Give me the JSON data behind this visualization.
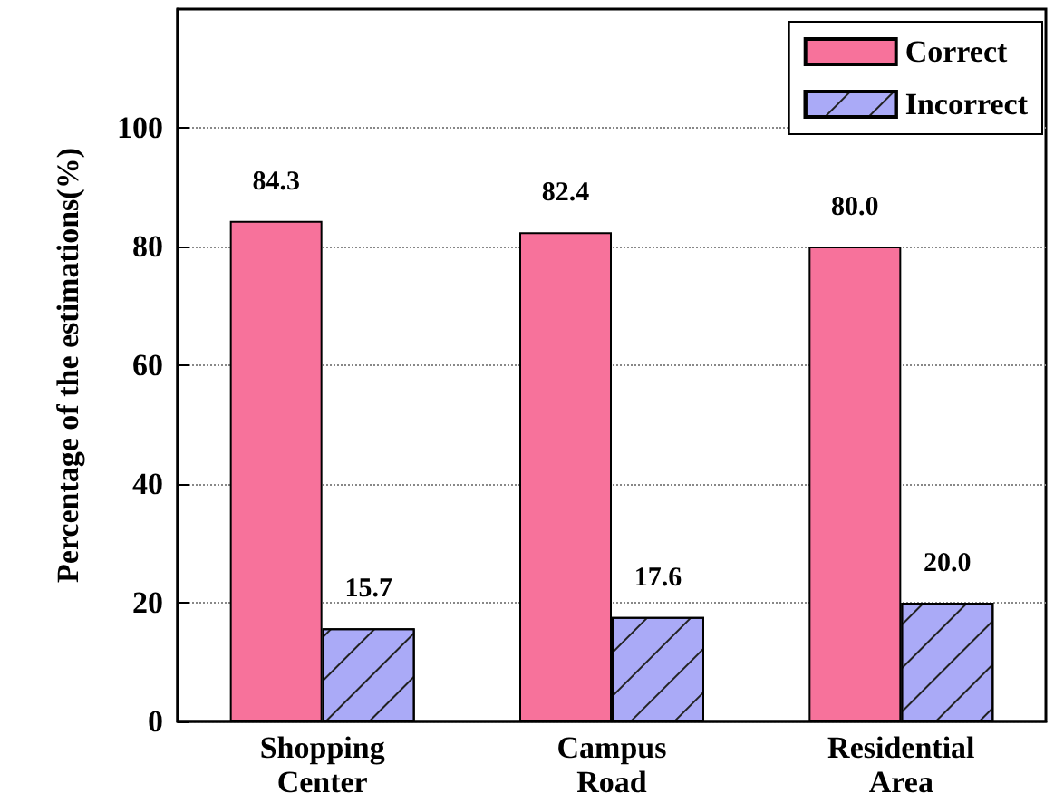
{
  "chart_data": {
    "type": "bar",
    "ylabel": "Percentage of the estimations(%)",
    "categories": [
      "Shopping Center",
      "Campus Road",
      "Residential Area"
    ],
    "series": [
      {
        "name": "Correct",
        "color": "#f7729b",
        "values": [
          84.3,
          82.4,
          80.0
        ],
        "value_labels": [
          "84.3",
          "82.4",
          "80.0"
        ]
      },
      {
        "name": "Incorrect",
        "color": "#aaaaf7",
        "values": [
          15.7,
          17.6,
          20.0
        ],
        "value_labels": [
          "15.7",
          "17.6",
          "20.0"
        ]
      }
    ],
    "ylim": [
      0,
      120
    ],
    "yticks": [
      0,
      20,
      40,
      60,
      80,
      100
    ],
    "grid": "y",
    "legend": "top right"
  }
}
